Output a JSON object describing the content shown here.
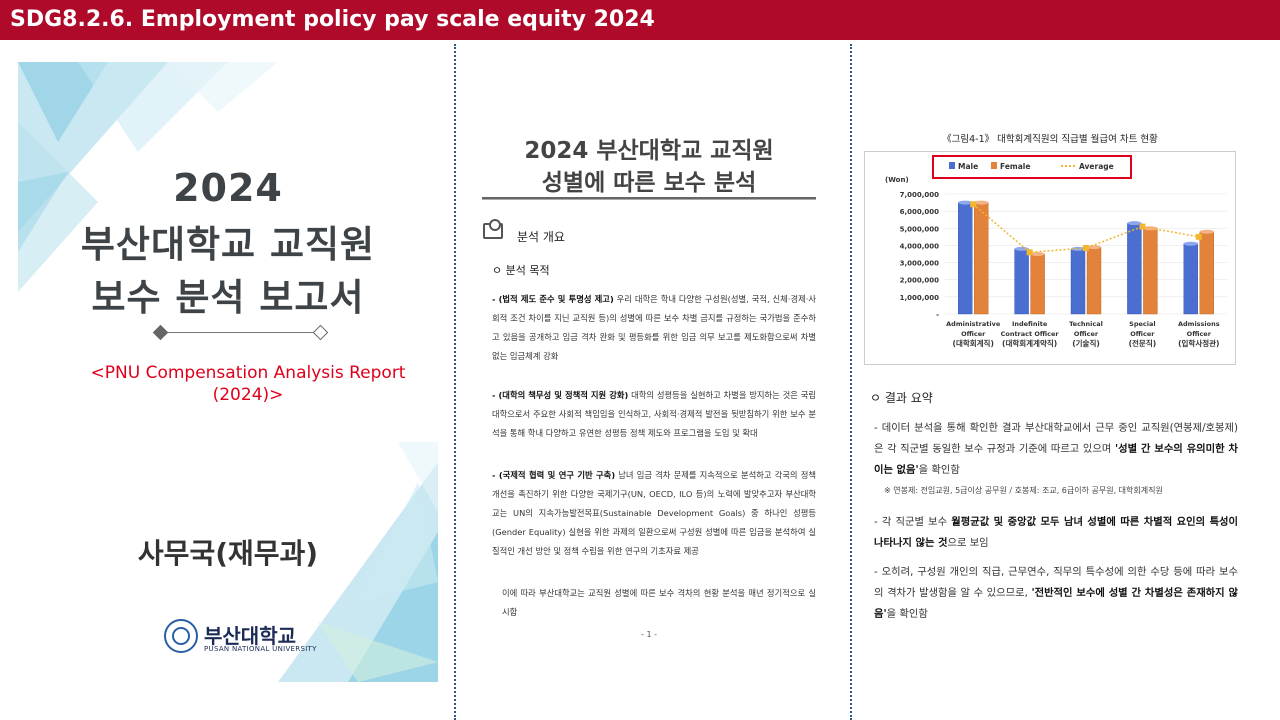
{
  "header": {
    "title": "SDG8.2.6. Employment policy pay scale equity 2024"
  },
  "cover": {
    "year": "2024",
    "line1": "부산대학교 교직원",
    "line2": "보수 분석 보고서",
    "english_line1": "<PNU Compensation Analysis Report",
    "english_line2": "(2024)>",
    "department": "사무국(재무과)",
    "logo_kr": "부산대학교",
    "logo_en": "PUSAN NATIONAL UNIVERSITY"
  },
  "document": {
    "title_line1": "2024 부산대학교 교직원",
    "title_line2": "성별에 따른 보수 분석",
    "section_title": "분석 개요",
    "subsection_title": "ㅇ 분석 목적",
    "p1_lead": "- (법적 제도 준수 및 투명성 제고)",
    "p1_body": " 우리 대학은 학내 다양한 구성원(성별, 국적, 신체·경제·사회적 조건 차이를 지닌 교직원 등)의 성별에 따른 보수 차별 금지를 규정하는 국가법을 준수하고 있음을 공개하고 임금 격차 완화 및 평등화를 위한 임금 의무 보고를 제도화함으로써 차별 없는 임금체계 강화",
    "p2_lead": "- (대학의 책무성 및 정책적 지원 강화)",
    "p2_body": " 대학의 성평등을 실현하고 차별을 방지하는 것은 국립대학으로서 주요한 사회적 책임임을 인식하고, 사회적·경제적 발전을 뒷받침하기 위한 보수 분석을 통해 학내 다양하고 유연한 성평등 정책 제도와 프로그램을 도입 및 확대",
    "p3_lead": "- (국제적 협력 및 연구 기반 구축)",
    "p3_body": " 남녀 임금 격차 문제를 지속적으로 분석하고 각국의 정책 개선을 촉진하기 위한 다양한 국제기구(UN, OECD, ILO 등)의 노력에 발맞추고자 부산대학교는 UN의 지속가능발전목표(Sustainable Development Goals) 중 하나인 성평등(Gender Equality) 실현을 위한 과제의 일환으로써 구성원 성별에 따른 임금을 분석하여 실질적인 개선 방안 및 정책 수립을 위한 연구의 기초자료 제공",
    "p4": "이에 따라 부산대학교는 교직원 성별에 따른 보수 격차의 현황 분석을 매년 정기적으로 실시함",
    "page_number": "- 1 -"
  },
  "results": {
    "figure_caption": "《그림4-1》 대학회계직원의 직급별 월급여 차트 현황",
    "section_title": "ㅇ 결과 요약",
    "r1_pre": "- 데이터 분석을 통해 확인한 결과 부산대학교에서 근무 중인 교직원(연봉제/호봉제)은 각 직군별 동일한 보수 규정과 기준에 따르고 있으며 ",
    "r1_bold": "'성별 간 보수의 유의미한 차이는 없음'",
    "r1_post": "을 확인함",
    "note": "※ 연봉제: 전임교원, 5급이상 공무원 / 호봉제: 조교, 6급이하 공무원, 대학회계직원",
    "r2_pre": "- 각 직군별 보수 ",
    "r2_bold": "월평균값 및 중앙값 모두 남녀 성별에 따른 차별적 요인의 특성이 나타나지 않는 것",
    "r2_post": "으로 보임",
    "r3_pre": "- 오히려, 구성원 개인의 직급, 근무연수, 직무의 특수성에 의한 수당 등에 따라 보수의 격차가 발생함을 알 수 있으므로, ",
    "r3_bold": "'전반적인 보수에 성별 간 차별성은 존재하지 않음'",
    "r3_post": "을 확인함"
  },
  "chart_data": {
    "type": "bar",
    "unit_label": "(Won)",
    "categories": [
      [
        "Administrative",
        "Officer",
        "(대학회계직)"
      ],
      [
        "Indefinite",
        "Contract Officer",
        "(대학회계계약직)"
      ],
      [
        "Technical",
        "Officer",
        "(기술직)"
      ],
      [
        "Special",
        "Officer",
        "(전문직)"
      ],
      [
        "Admissions",
        "Officer",
        "(입학사정관)"
      ]
    ],
    "series": [
      {
        "name": "Male",
        "values": [
          6500000,
          3800000,
          3800000,
          5300000,
          4100000
        ],
        "color": "#4a6fd0"
      },
      {
        "name": "Female",
        "values": [
          6500000,
          3500000,
          3900000,
          5000000,
          4800000
        ],
        "color": "#e3823a"
      },
      {
        "name": "Average",
        "values": [
          6400000,
          3600000,
          3850000,
          5100000,
          4500000
        ],
        "color": "#f2b630",
        "style": "dotted-line"
      }
    ],
    "y_ticks": [
      "7,000,000",
      "6,000,000",
      "5,000,000",
      "4,000,000",
      "3,000,000",
      "2,000,000",
      "1,000,000",
      "-"
    ],
    "ylim": [
      0,
      7000000
    ],
    "legend_position": "top",
    "legend_highlight_color": "#e0001b"
  }
}
